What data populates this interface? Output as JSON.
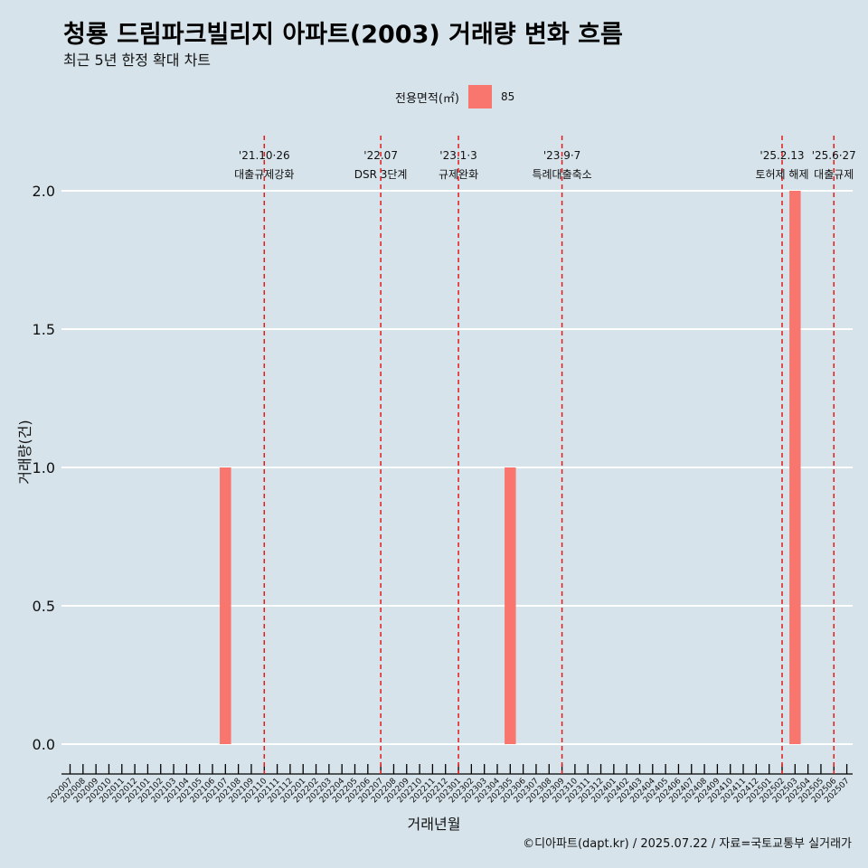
{
  "chart_data": {
    "type": "bar",
    "title": "청룡 드림파크빌리지 아파트(2003) 거래량 변화 흐름",
    "subtitle": "최근 5년 한정 확대 차트",
    "xlabel": "거래년월",
    "ylabel": "거래량(건)",
    "caption": "©디아파트(dapt.kr) / 2025.07.22 / 자료=국토교통부 실거래가",
    "legend": {
      "title": "전용면적(㎡)",
      "position": "top",
      "entries": [
        {
          "label": "85",
          "color": "#F8766D"
        }
      ]
    },
    "ylim": [
      0,
      2
    ],
    "yticks": [
      0.0,
      0.5,
      1.0,
      1.5,
      2.0
    ],
    "ytick_labels": [
      "0.0",
      "0.5",
      "1.0",
      "1.5",
      "2.0"
    ],
    "grid": true,
    "categories": [
      "202007",
      "202008",
      "202009",
      "202010",
      "202011",
      "202012",
      "202101",
      "202102",
      "202103",
      "202104",
      "202105",
      "202106",
      "202107",
      "202108",
      "202109",
      "202110",
      "202111",
      "202112",
      "202201",
      "202202",
      "202203",
      "202204",
      "202205",
      "202206",
      "202207",
      "202208",
      "202209",
      "202210",
      "202211",
      "202212",
      "202301",
      "202302",
      "202303",
      "202304",
      "202305",
      "202306",
      "202307",
      "202308",
      "202309",
      "202310",
      "202311",
      "202312",
      "202401",
      "202402",
      "202403",
      "202404",
      "202405",
      "202406",
      "202407",
      "202408",
      "202409",
      "202410",
      "202411",
      "202412",
      "202501",
      "202502",
      "202503",
      "202504",
      "202505",
      "202506",
      "202507"
    ],
    "series": [
      {
        "name": "85",
        "color": "#F8766D",
        "values": [
          0,
          0,
          0,
          0,
          0,
          0,
          0,
          0,
          0,
          0,
          0,
          0,
          1,
          0,
          0,
          0,
          0,
          0,
          0,
          0,
          0,
          0,
          0,
          0,
          0,
          0,
          0,
          0,
          0,
          0,
          0,
          0,
          0,
          0,
          1,
          0,
          0,
          0,
          0,
          0,
          0,
          0,
          0,
          0,
          0,
          0,
          0,
          0,
          0,
          0,
          0,
          0,
          0,
          0,
          0,
          0,
          2,
          0,
          0,
          0,
          0
        ]
      }
    ],
    "events": [
      {
        "x": "202110",
        "date": "'21.10·26",
        "label": "대출규제강화"
      },
      {
        "x": "202207",
        "date": "'22.07",
        "label": "DSR 3단계"
      },
      {
        "x": "202301",
        "date": "'23.1·3",
        "label": "규제완화"
      },
      {
        "x": "202309",
        "date": "'23.9·7",
        "label": "특례대출축소"
      },
      {
        "x": "202502",
        "date": "'25.2.13",
        "label": "토허제 해제"
      },
      {
        "x": "202506",
        "date": "'25.6·27",
        "label": "대출규제"
      }
    ],
    "event_line_color": "#e41a1c"
  }
}
